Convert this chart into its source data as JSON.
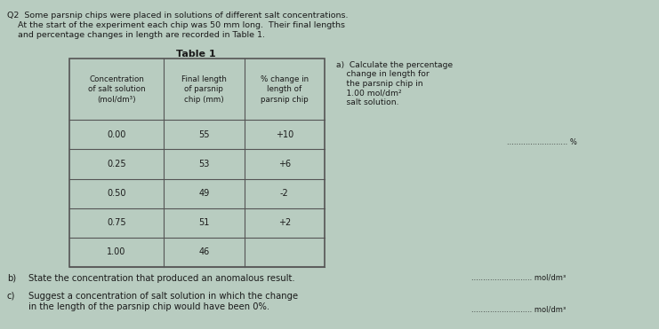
{
  "bg_color": "#b8ccc0",
  "text_color": "#1a1a1a",
  "table_border_color": "#555555",
  "q2_intro": "Q2  Some parsnip chips were placed in solutions of different salt concentrations.\n    At the start of the experiment each chip was 50 mm long.  Their final lengths\n    and percentage changes in length are recorded in Table 1.",
  "table_title": "Table 1",
  "col_headers": [
    "Concentration\nof salt solution\n(mol/dm³)",
    "Final length\nof parsnip\nchip (mm)",
    "% change in\nlength of\nparsnip chip"
  ],
  "rows": [
    [
      "0.00",
      "55",
      "+10"
    ],
    [
      "0.25",
      "53",
      "+6"
    ],
    [
      "0.50",
      "49",
      "-2"
    ],
    [
      "0.75",
      "51",
      "+2"
    ],
    [
      "1.00",
      "46",
      ""
    ]
  ],
  "side_a_lines": [
    "a)  Calculate the percentage",
    "    change in length for",
    "    the parsnip chip in",
    "    1.00 mol/dm²",
    "    salt solution."
  ],
  "answer_line": ".......................... %",
  "b_label": "b)",
  "b_text": "State the concentration that produced an anomalous result.",
  "b_answer": ".......................... mol/dm³",
  "c_label": "c)",
  "c_text_line1": "Suggest a concentration of salt solution in which the change",
  "c_text_line2": "in the length of the parsnip chip would have been 0%.",
  "c_answer": ".......................... mol/dm³",
  "font_size_body": 7.0,
  "font_size_table": 6.8,
  "font_size_header": 6.5
}
